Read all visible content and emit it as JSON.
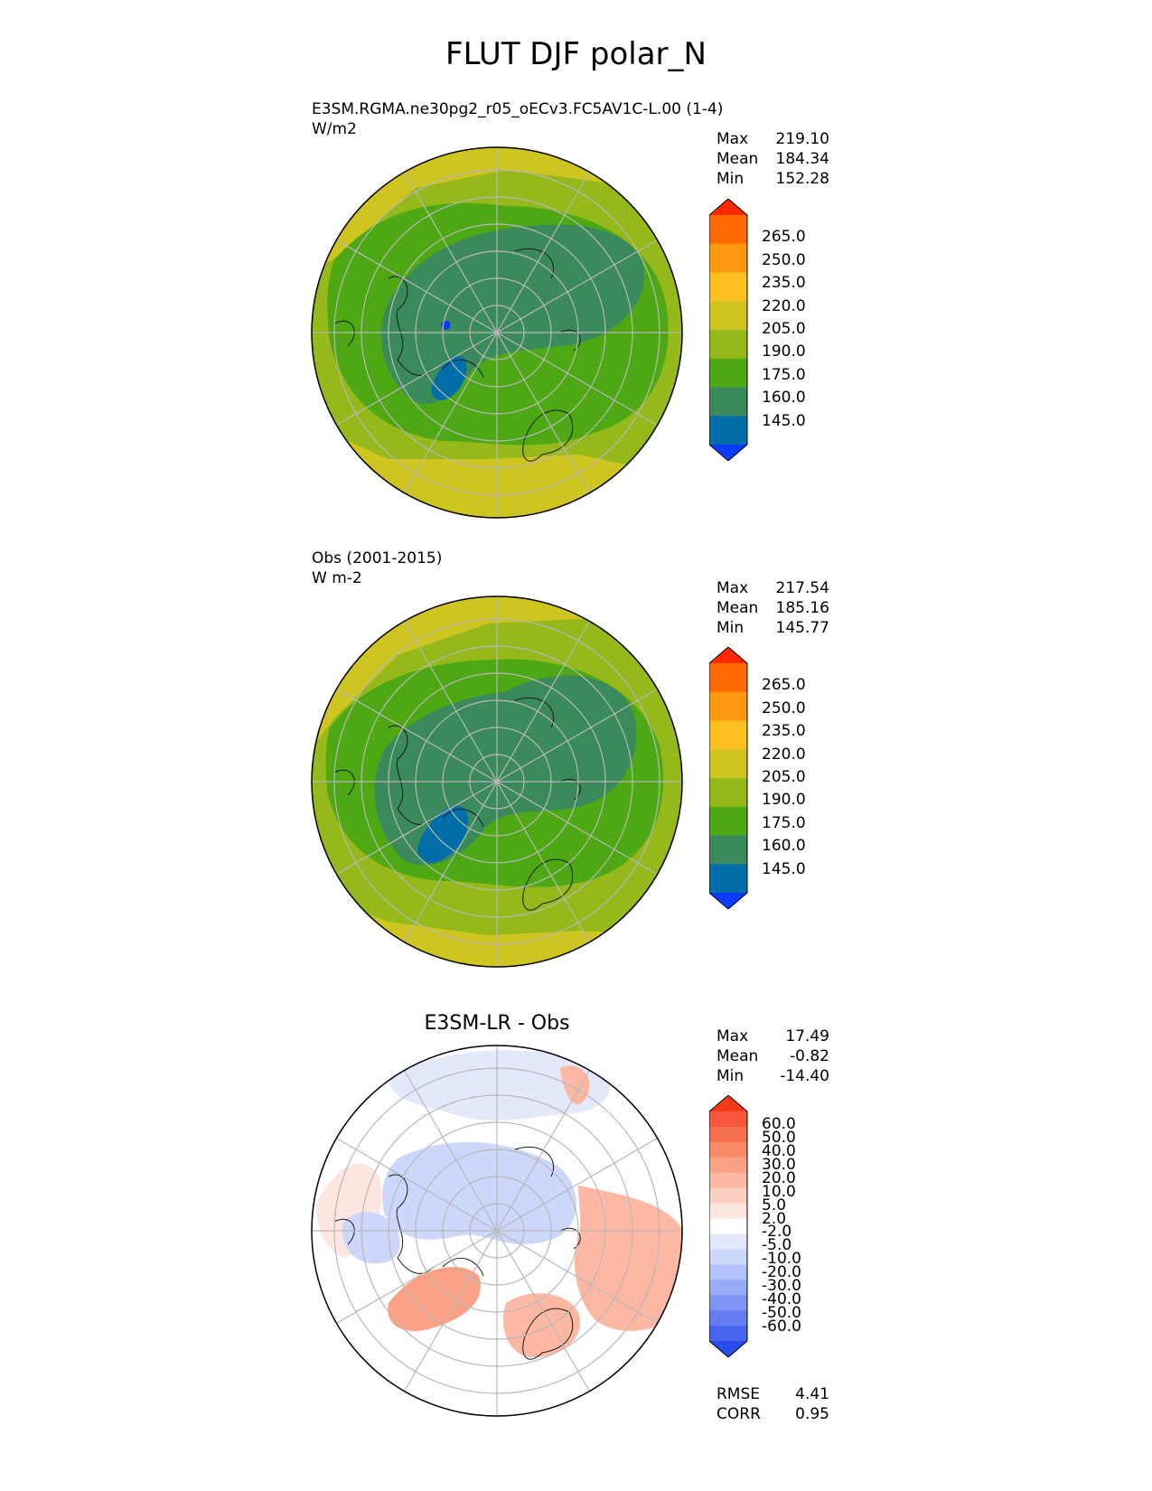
{
  "figure": {
    "title": "FLUT DJF polar_N"
  },
  "panels": [
    {
      "id": "model",
      "header_lines": [
        "E3SM.RGMA.ne30pg2_r05_oECv3.FC5AV1C-L.00 (1-4)",
        "W/m2"
      ],
      "stats": [
        {
          "label": "Max",
          "value": "219.10"
        },
        {
          "label": "Mean",
          "value": "184.34"
        },
        {
          "label": "Min",
          "value": "152.28"
        }
      ],
      "colorbar": {
        "ticks": [
          "265.0",
          "250.0",
          "235.0",
          "220.0",
          "205.0",
          "190.0",
          "175.0",
          "160.0",
          "145.0"
        ],
        "colors": [
          "#ff2a00",
          "#ff6a00",
          "#ff9a10",
          "#fdc020",
          "#cfc520",
          "#95b81a",
          "#4ea814",
          "#3a8a5c",
          "#006ea8",
          "#0a3cff"
        ]
      }
    },
    {
      "id": "obs",
      "header_lines": [
        "Obs (2001-2015)",
        "W m-2"
      ],
      "stats": [
        {
          "label": "Max",
          "value": "217.54"
        },
        {
          "label": "Mean",
          "value": "185.16"
        },
        {
          "label": "Min",
          "value": "145.77"
        }
      ],
      "colorbar": {
        "ticks": [
          "265.0",
          "250.0",
          "235.0",
          "220.0",
          "205.0",
          "190.0",
          "175.0",
          "160.0",
          "145.0"
        ],
        "colors": [
          "#ff2a00",
          "#ff6a00",
          "#ff9a10",
          "#fdc020",
          "#cfc520",
          "#95b81a",
          "#4ea814",
          "#3a8a5c",
          "#006ea8",
          "#0a3cff"
        ]
      }
    },
    {
      "id": "diff",
      "center_title": "E3SM-LR - Obs",
      "stats": [
        {
          "label": "Max",
          "value": "17.49"
        },
        {
          "label": "Mean",
          "value": "-0.82"
        },
        {
          "label": "Min",
          "value": "-14.40"
        }
      ],
      "extra_stats": [
        {
          "label": "RMSE",
          "value": "4.41"
        },
        {
          "label": "CORR",
          "value": "0.95"
        }
      ],
      "colorbar": {
        "ticks": [
          "60.0",
          "50.0",
          "40.0",
          "30.0",
          "20.0",
          "10.0",
          "5.0",
          "2.0",
          "-2.0",
          "-5.0",
          "-10.0",
          "-20.0",
          "-30.0",
          "-40.0",
          "-50.0",
          "-60.0"
        ],
        "colors": [
          "#f53a1a",
          "#f7573a",
          "#f8714f",
          "#fa8a6a",
          "#fba286",
          "#fcb8a2",
          "#fdcfc2",
          "#fee6e0",
          "#ffffff",
          "#e4e8fb",
          "#cdd6fb",
          "#b3c2fa",
          "#99acf8",
          "#7f95f6",
          "#647df3",
          "#4865f0",
          "#2b4cec"
        ]
      }
    }
  ],
  "style": {
    "ocean_model": "#4ea814",
    "gridline": "#b8b8b8",
    "coast": "#1a1a1a"
  }
}
